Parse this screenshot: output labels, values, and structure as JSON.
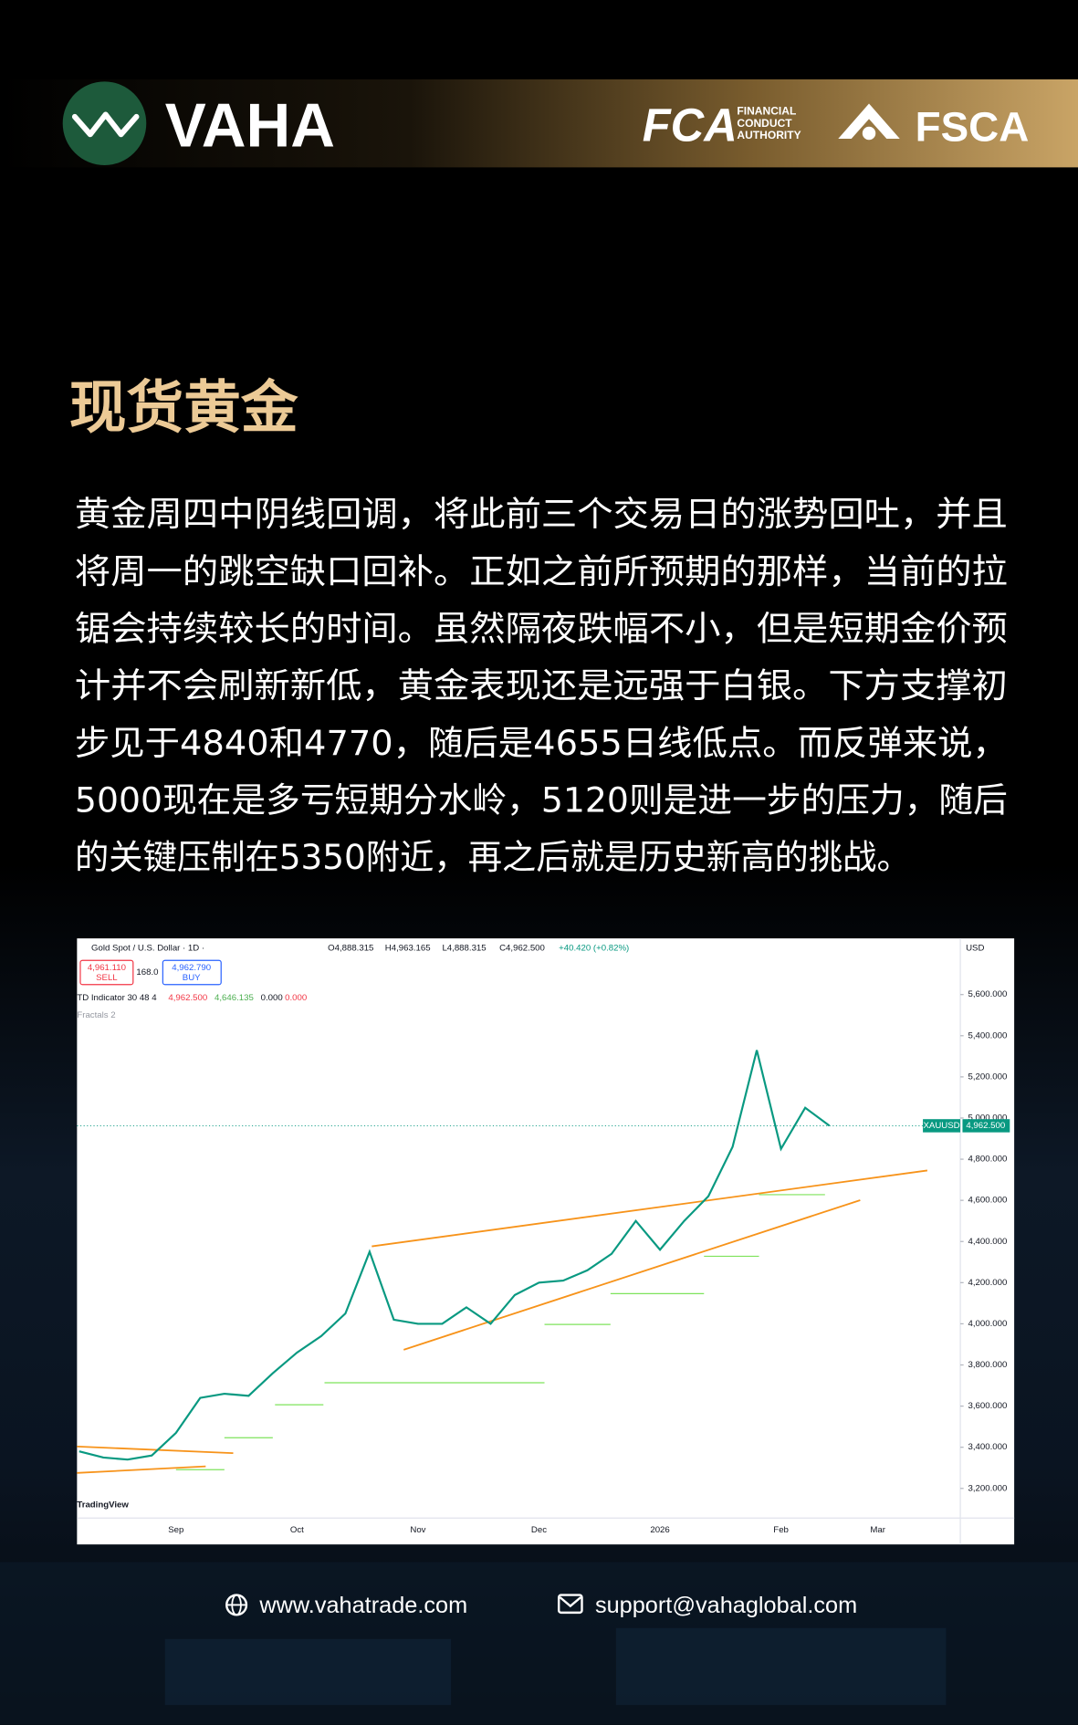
{
  "header": {
    "brand": "VAHA",
    "fca": "FCA",
    "fca_lines": [
      "FINANCIAL",
      "CONDUCT",
      "AUTHORITY"
    ],
    "fsca": "FSCA"
  },
  "article": {
    "title": "现货黄金",
    "lines": [
      "黄金周四中阴线回调，将此前三个交易日的涨势回吐，并且",
      "将周一的跳空缺口回补。正如之前所预期的那样，当前的拉",
      "锯会持续较长的时间。虽然隔夜跌幅不小，但是短期金价预",
      "计并不会刷新新低，黄金表现还是远强于白银。下方支撑初",
      "步见于4840和4770，随后是4655日线低点。而反弹来说，",
      "5000现在是多亏短期分水岭，5120则是进一步的压力，随后",
      "的关键压制在5350附近，再之后就是历史新高的挑战。"
    ]
  },
  "chart": {
    "chart_data": {
      "type": "line",
      "symbol": "Gold Spot / U.S. Dollar · 1D ·",
      "ohlc": [
        "O4,888.315",
        "H4,963.165",
        "L4,888.315",
        "C4,962.500",
        "+40.420 (+0.82%)"
      ],
      "sell_price": "4,961.110",
      "sell_label": "SELL",
      "spread": "168.0",
      "buy_price": "4,962.790",
      "buy_label": "BUY",
      "indicator": "TD Indicator 30 48 4",
      "indicator_values": [
        "4,962.500",
        "4,646.135",
        "0.000",
        "0.000"
      ],
      "fractals": "Fractals 2",
      "currency": "USD",
      "symbol_tag": "XAUUSD",
      "last_price": {
        "value": 4962.5,
        "label": "4,962.500"
      },
      "brand": "TradingView",
      "color": "#089981",
      "categories": [
        null,
        null,
        null,
        null,
        "Sep",
        null,
        null,
        null,
        null,
        "Oct",
        null,
        null,
        null,
        null,
        "Nov",
        null,
        null,
        null,
        null,
        "Dec",
        null,
        null,
        null,
        null,
        "2026",
        null,
        null,
        null,
        null,
        "Feb",
        null,
        null,
        null,
        "Mar"
      ],
      "values": [
        3380,
        3350,
        3340,
        3360,
        3470,
        3640,
        3660,
        3650,
        3760,
        3860,
        3940,
        4050,
        4350,
        4020,
        4000,
        4000,
        4080,
        4000,
        4140,
        4200,
        4210,
        4260,
        4340,
        4500,
        4360,
        4500,
        4620,
        4860,
        5330,
        4850,
        5050,
        4962.5,
        null,
        null
      ],
      "ylim": [
        3056,
        5857
      ],
      "yticks": [
        {
          "value": 3200,
          "label": "3,200.000"
        },
        {
          "value": 3400,
          "label": "3,400.000"
        },
        {
          "value": 3600,
          "label": "3,600.000"
        },
        {
          "value": 3800,
          "label": "3,800.000"
        },
        {
          "value": 4000,
          "label": "4,000.000"
        },
        {
          "value": 4200,
          "label": "4,200.000"
        },
        {
          "value": 4400,
          "label": "4,400.000"
        },
        {
          "value": 4600,
          "label": "4,600.000"
        },
        {
          "value": 4800,
          "label": "4,800.000"
        },
        {
          "value": 5000,
          "label": "5,000.000"
        },
        {
          "value": 5200,
          "label": "5,200.000"
        },
        {
          "value": 5400,
          "label": "5,400.000"
        },
        {
          "value": 5600,
          "label": "5,600.000"
        }
      ]
    }
  },
  "footer": {
    "website": "www.vahatrade.com",
    "email": "support@vahaglobal.com"
  }
}
